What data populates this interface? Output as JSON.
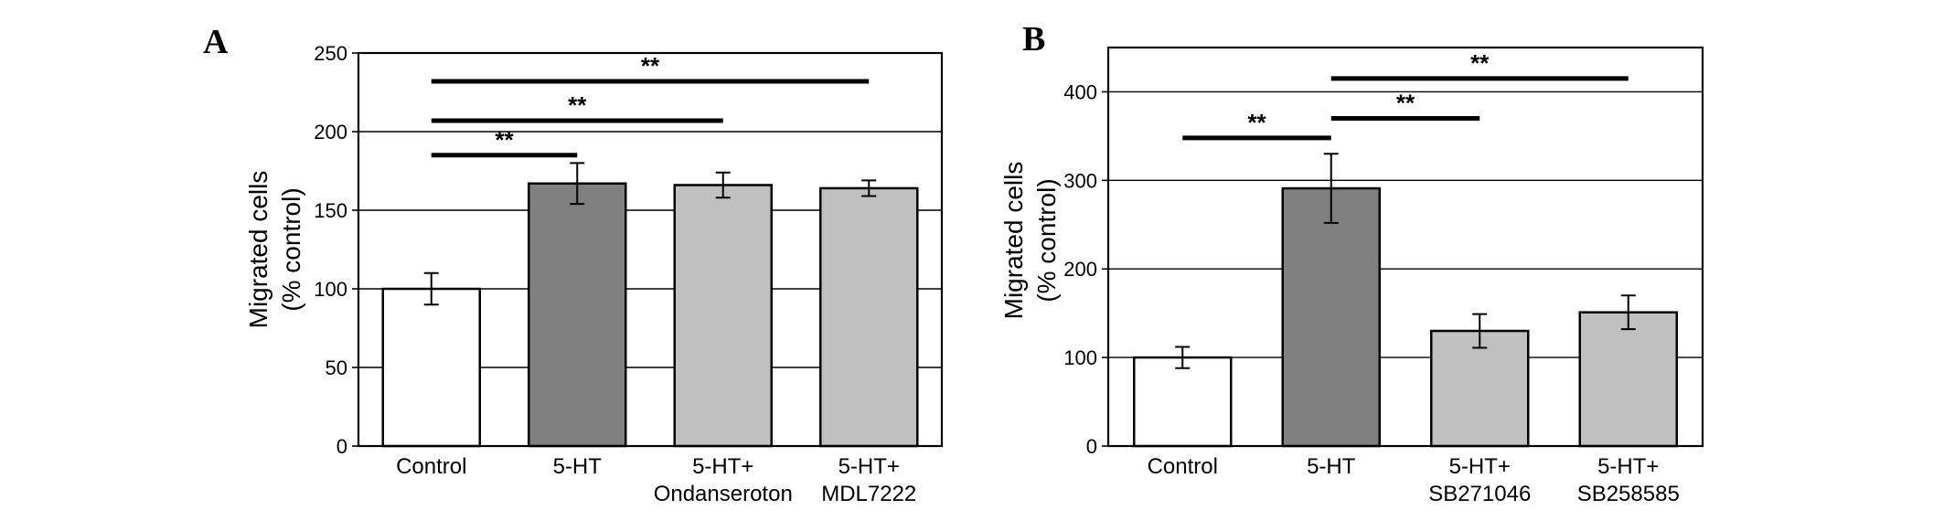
{
  "chart_data": [
    {
      "panel": "A",
      "type": "bar",
      "categories": [
        [
          "Control"
        ],
        [
          "5-HT"
        ],
        [
          "5-HT+",
          "Ondanseroton"
        ],
        [
          "5-HT+",
          "MDL7222"
        ]
      ],
      "values": [
        100,
        167,
        166,
        164
      ],
      "errors": [
        10,
        13,
        8,
        5
      ],
      "bar_colors": [
        "#ffffff",
        "#808080",
        "#c0c0c0",
        "#c0c0c0"
      ],
      "ylabel": [
        "Migrated cells",
        "(% control)"
      ],
      "ylim": [
        0,
        250
      ],
      "yticks": [
        0,
        50,
        100,
        150,
        200,
        250
      ],
      "grid": true,
      "significance": [
        {
          "from": 0,
          "to": 1,
          "y": 185,
          "label": "**"
        },
        {
          "from": 0,
          "to": 2,
          "y": 207,
          "label": "**"
        },
        {
          "from": 0,
          "to": 3,
          "y": 232,
          "label": "**"
        }
      ]
    },
    {
      "panel": "B",
      "type": "bar",
      "categories": [
        [
          "Control"
        ],
        [
          "5-HT"
        ],
        [
          "5-HT+",
          "SB271046"
        ],
        [
          "5-HT+",
          "SB258585"
        ]
      ],
      "values": [
        100,
        291,
        130,
        151
      ],
      "errors": [
        12,
        39,
        19,
        19
      ],
      "bar_colors": [
        "#ffffff",
        "#808080",
        "#c0c0c0",
        "#c0c0c0"
      ],
      "ylabel": [
        "Migrated cells",
        "(% control)"
      ],
      "ylim": [
        0,
        450
      ],
      "yticks": [
        0,
        100,
        200,
        300,
        400
      ],
      "grid": true,
      "significance": [
        {
          "from": 0,
          "to": 1,
          "y": 348,
          "label": "**"
        },
        {
          "from": 1,
          "to": 2,
          "y": 370,
          "label": "**"
        },
        {
          "from": 1,
          "to": 3,
          "y": 415,
          "label": "**"
        }
      ]
    }
  ]
}
